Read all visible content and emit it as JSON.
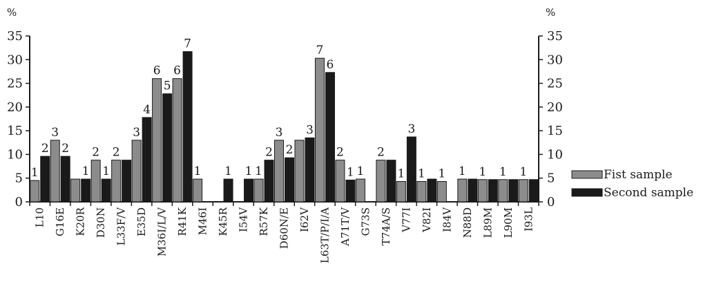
{
  "chart_data": {
    "type": "bar",
    "categories": [
      "L10",
      "G16E",
      "K20R",
      "D30N",
      "L33F/V",
      "E35D",
      "M36I/L/V",
      "R41K",
      "M46I",
      "K45R",
      "I54V",
      "R57K",
      "D60N/E",
      "I62V",
      "L63T/P/I/A",
      "A71T/V",
      "G73S",
      "T74A/S",
      "V77I",
      "V82I",
      "I84V",
      "N88D",
      "L89M",
      "L90M",
      "I93L"
    ],
    "series": [
      {
        "name": "Fist sample",
        "color": "#8c8c8c",
        "values": [
          4.5,
          13,
          4.8,
          8.8,
          8.8,
          13,
          26,
          26,
          4.8,
          0,
          0,
          4.8,
          13,
          13,
          30.3,
          8.8,
          4.8,
          8.8,
          4.3,
          4.3,
          4.3,
          4.8,
          4.7,
          4.7,
          4.7
        ],
        "labels": [
          "1",
          "3",
          "",
          "2",
          "2",
          "3",
          "6",
          "6",
          "1",
          "",
          "",
          "1",
          "3",
          "",
          "7",
          "2",
          "1",
          "2",
          "1",
          "1",
          "1",
          "1",
          "1",
          "1",
          "1"
        ]
      },
      {
        "name": "Second sample",
        "color": "#1a1a1a",
        "values": [
          9.6,
          9.6,
          4.8,
          4.8,
          8.8,
          17.8,
          22.8,
          31.7,
          0,
          4.8,
          4.8,
          8.8,
          9.3,
          13.5,
          27.3,
          4.6,
          0,
          8.8,
          13.7,
          4.8,
          0,
          4.8,
          4.7,
          4.7,
          4.7
        ],
        "labels": [
          "2",
          "2",
          "1",
          "1",
          "",
          "4",
          "5",
          "7",
          "",
          "1",
          "1",
          "2",
          "2",
          "3",
          "6",
          "1",
          "",
          "",
          "3",
          "",
          "",
          "",
          "",
          "",
          ""
        ]
      }
    ],
    "ylim": [
      0,
      35
    ],
    "yticks": [
      0,
      5,
      10,
      15,
      20,
      25,
      30,
      35
    ],
    "y_unit_left": "%",
    "y_unit_right": "%",
    "legend_position": "right"
  }
}
